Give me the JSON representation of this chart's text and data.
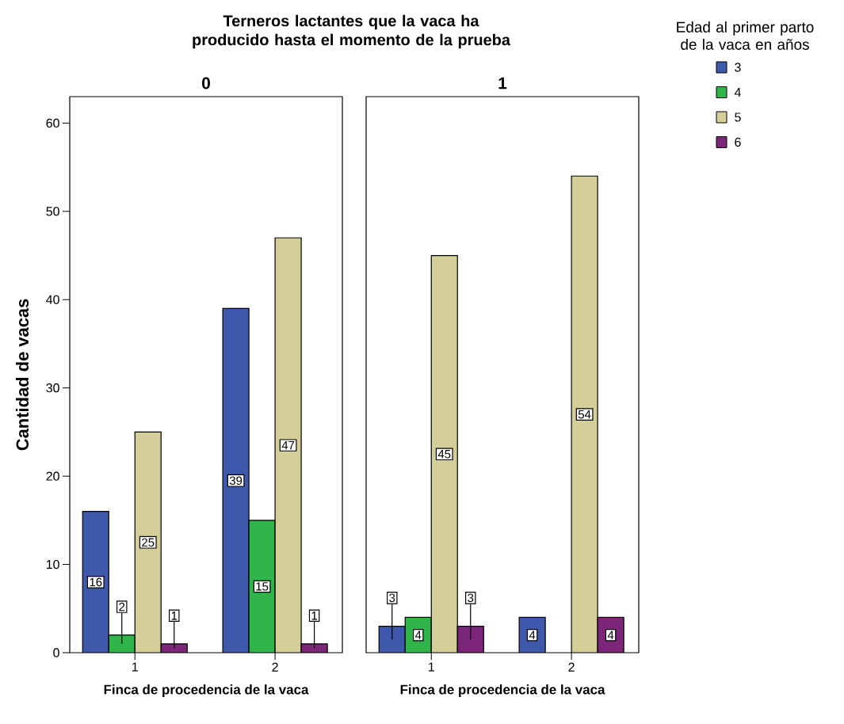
{
  "chart_data": [
    {
      "type": "bar",
      "title": "0",
      "xlabel": "Finca de procedencia de la vaca",
      "ylabel": "Cantidad de vacas",
      "annotations": [
        "Terneros lactantes que la vaca ha producido hasta el momento de la prueba"
      ],
      "categories": [
        "1",
        "2"
      ],
      "ylim": [
        0,
        63
      ],
      "yticks": [
        0,
        10,
        20,
        30,
        40,
        50,
        60
      ],
      "data_labels": true,
      "series": [
        {
          "color": "#3e58ac",
          "values": [
            16,
            39
          ]
        },
        {
          "color": "#2fb54a",
          "values": [
            2,
            15
          ]
        },
        {
          "color": "#d4cf98",
          "values": [
            25,
            47
          ]
        },
        {
          "color": "#7c2679",
          "values": [
            1,
            1
          ]
        }
      ]
    },
    {
      "type": "bar",
      "title": "1",
      "xlabel": "Finca de procedencia de la vaca",
      "legend_title": "Edad al primer parto de la vaca en años",
      "legend": "top right",
      "tick_labels": "x",
      "categories": [
        "1",
        "2"
      ],
      "ylim": [
        0,
        63
      ],
      "data_labels": true,
      "series": [
        {
          "name": "3",
          "color": "#3e58ac",
          "values": [
            3,
            4
          ]
        },
        {
          "name": "4",
          "color": "#2fb54a",
          "values": [
            4,
            null
          ]
        },
        {
          "name": "5",
          "color": "#d4cf98",
          "values": [
            45,
            54
          ]
        },
        {
          "name": "6",
          "color": "#7c2679",
          "values": [
            3,
            4
          ]
        }
      ]
    }
  ]
}
